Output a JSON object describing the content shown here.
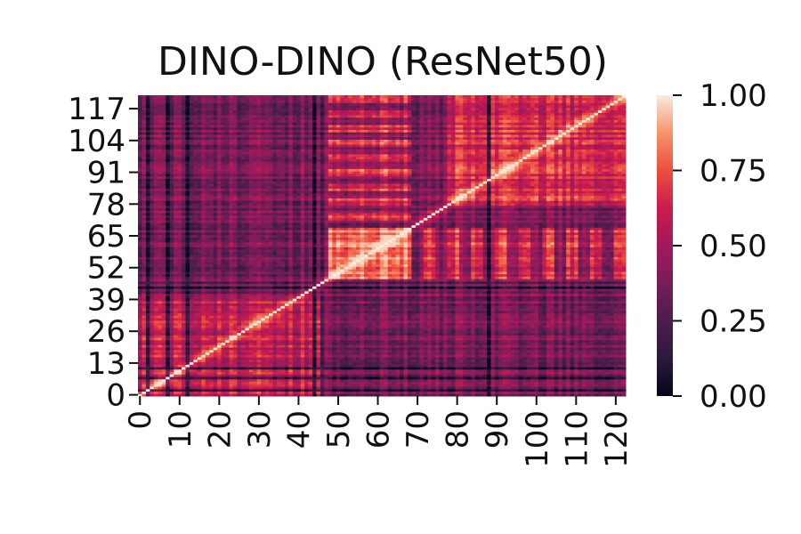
{
  "chart_data": {
    "type": "heatmap",
    "title": "DINO-DINO (ResNet50)",
    "xlabel": "",
    "ylabel": "",
    "n_rows": 123,
    "n_cols": 123,
    "x_ticks": [
      "0",
      "10",
      "20",
      "30",
      "40",
      "50",
      "60",
      "70",
      "80",
      "90",
      "100",
      "110",
      "120"
    ],
    "x_tick_values": [
      0,
      10,
      20,
      30,
      40,
      50,
      60,
      70,
      80,
      90,
      100,
      110,
      120
    ],
    "y_ticks": [
      "0",
      "13",
      "26",
      "39",
      "52",
      "65",
      "78",
      "91",
      "104",
      "117"
    ],
    "y_tick_values": [
      0,
      13,
      26,
      39,
      52,
      65,
      78,
      91,
      104,
      117
    ],
    "y_origin": "bottom",
    "value_range": [
      0.0,
      1.0
    ],
    "colorbar": {
      "ticks": [
        "0.00",
        "0.25",
        "0.50",
        "0.75",
        "1.00"
      ],
      "tick_values": [
        0.0,
        0.25,
        0.5,
        0.75,
        1.0
      ],
      "colormap": "rocket"
    },
    "diagonal_value": 1.0,
    "blocks": [
      {
        "label": "high-similarity block",
        "rows": [
          48,
          68
        ],
        "cols": [
          48,
          68
        ],
        "level": 0.85
      },
      {
        "label": "upper-right block",
        "rows": [
          78,
          122
        ],
        "cols": [
          78,
          122
        ],
        "level": 0.65
      },
      {
        "label": "lower-left block",
        "rows": [
          0,
          40
        ],
        "cols": [
          0,
          45
        ],
        "level": 0.6
      }
    ],
    "dark_bands_cols": [
      2,
      7,
      12,
      44,
      46,
      88
    ],
    "dark_bands_rows": [
      2,
      7,
      11,
      44,
      46
    ]
  }
}
